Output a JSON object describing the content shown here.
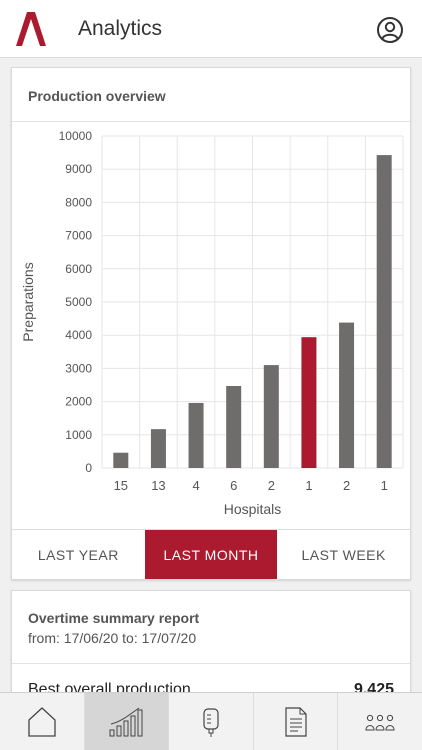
{
  "app": {
    "title": "Analytics"
  },
  "production": {
    "title": "Production overview",
    "periods": [
      "LAST YEAR",
      "LAST MONTH",
      "LAST WEEK"
    ],
    "active_period": "LAST MONTH"
  },
  "chart_data": {
    "type": "bar",
    "categories": [
      "15",
      "13",
      "4",
      "6",
      "2",
      "1",
      "2",
      "1"
    ],
    "values": [
      460,
      1170,
      1960,
      2470,
      3100,
      3940,
      4380,
      9425
    ],
    "highlight_index": 5,
    "xlabel": "Hospitals",
    "ylabel": "Preparations",
    "ylim": [
      0,
      10000
    ],
    "yticks": [
      0,
      1000,
      2000,
      3000,
      4000,
      5000,
      6000,
      7000,
      8000,
      9000,
      10000
    ],
    "grid": true,
    "colors": {
      "bar": "#6f6c6c",
      "highlight": "#ac1a2f",
      "grid": "#e6e6e6"
    }
  },
  "summary": {
    "title": "Overtime summary report",
    "range": "from: 17/06/20 to: 17/07/20",
    "row_label": "Best overall production",
    "row_value": "9,425"
  },
  "tabs": [
    {
      "icon": "home-icon",
      "active": false
    },
    {
      "icon": "analytics-icon",
      "active": true
    },
    {
      "icon": "iv-bag-icon",
      "active": false
    },
    {
      "icon": "document-icon",
      "active": false
    },
    {
      "icon": "users-icon",
      "active": false
    }
  ],
  "colors": {
    "accent": "#ac1a2f"
  }
}
